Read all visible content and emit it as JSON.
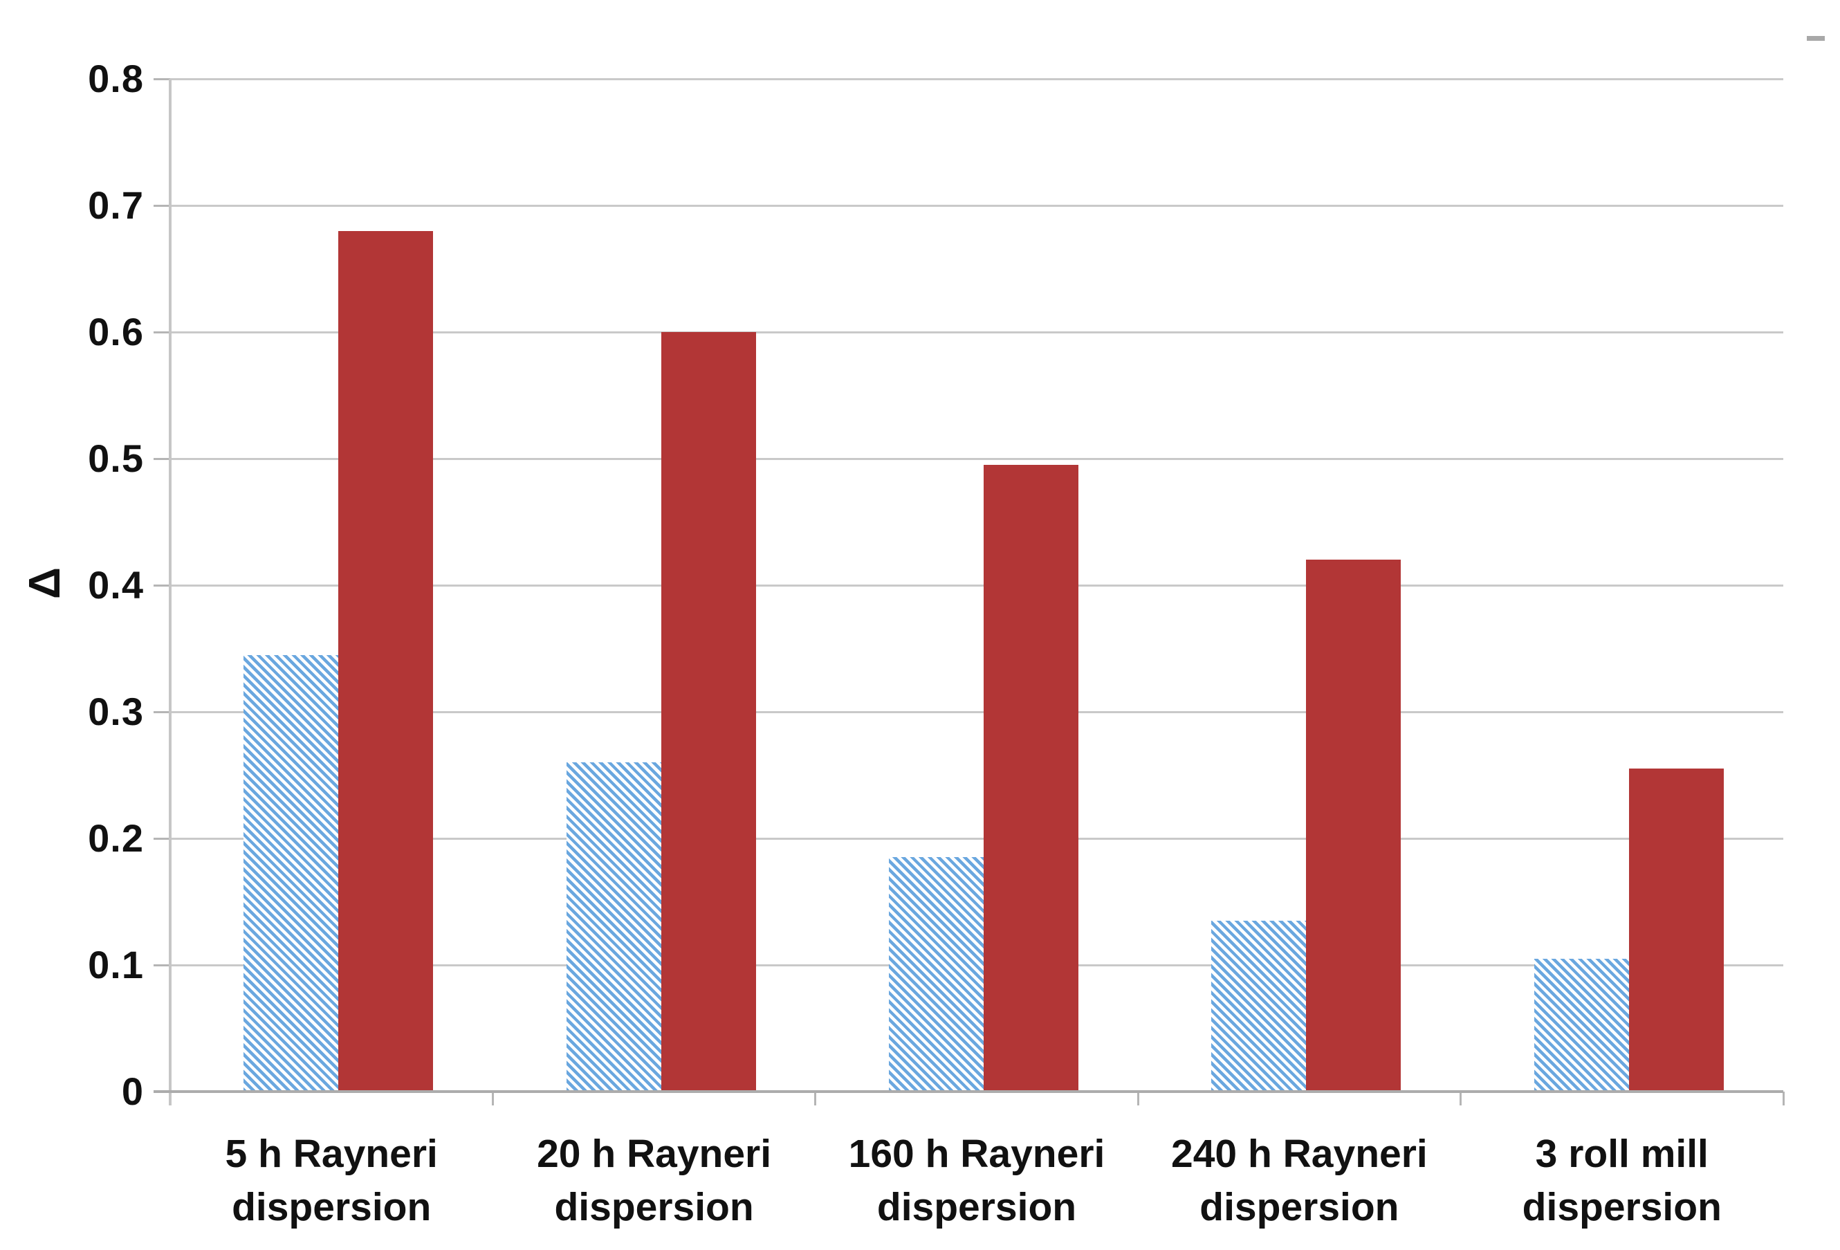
{
  "chart_data": {
    "type": "bar",
    "title": "",
    "categories": [
      "5 h Rayneri dispersion",
      "20 h Rayneri dispersion",
      "160 h Rayneri dispersion",
      "240 h Rayneri dispersion",
      "3 roll mill dispersion"
    ],
    "categories_line1": [
      "5 h Rayneri",
      "20 h Rayneri",
      "160 h Rayneri",
      "240 h Rayneri",
      "3 roll mill"
    ],
    "categories_line2": [
      "dispersion",
      "dispersion",
      "dispersion",
      "dispersion",
      "dispersion"
    ],
    "series": [
      {
        "name": "blue-hatched-series",
        "style": "diagonal-hatch",
        "color": "#6aa7df",
        "values": [
          0.345,
          0.26,
          0.185,
          0.135,
          0.105
        ]
      },
      {
        "name": "red-solid-series",
        "style": "solid",
        "color": "#b23636",
        "values": [
          0.68,
          0.6,
          0.495,
          0.42,
          0.255
        ]
      }
    ],
    "xlabel": "",
    "ylabel": "Δ",
    "ylim": [
      0,
      0.8
    ],
    "ytick_step": 0.1,
    "yticks": [
      "0.8",
      "0.7",
      "0.6",
      "0.5",
      "0.4",
      "0.3",
      "0.2",
      "0.1",
      "0"
    ],
    "grid": true,
    "legend": false
  },
  "colors": {
    "red_series": "#b23636",
    "blue_series": "#6aa7df",
    "gridline": "#c9c9c9",
    "axis_x": "#acacac",
    "axis_y": "#c6c6c6",
    "tick": "#b5b5b5",
    "text": "#111111",
    "corner_dash": "#a8a8a8"
  },
  "decoration": {
    "top_right_dash": true
  }
}
